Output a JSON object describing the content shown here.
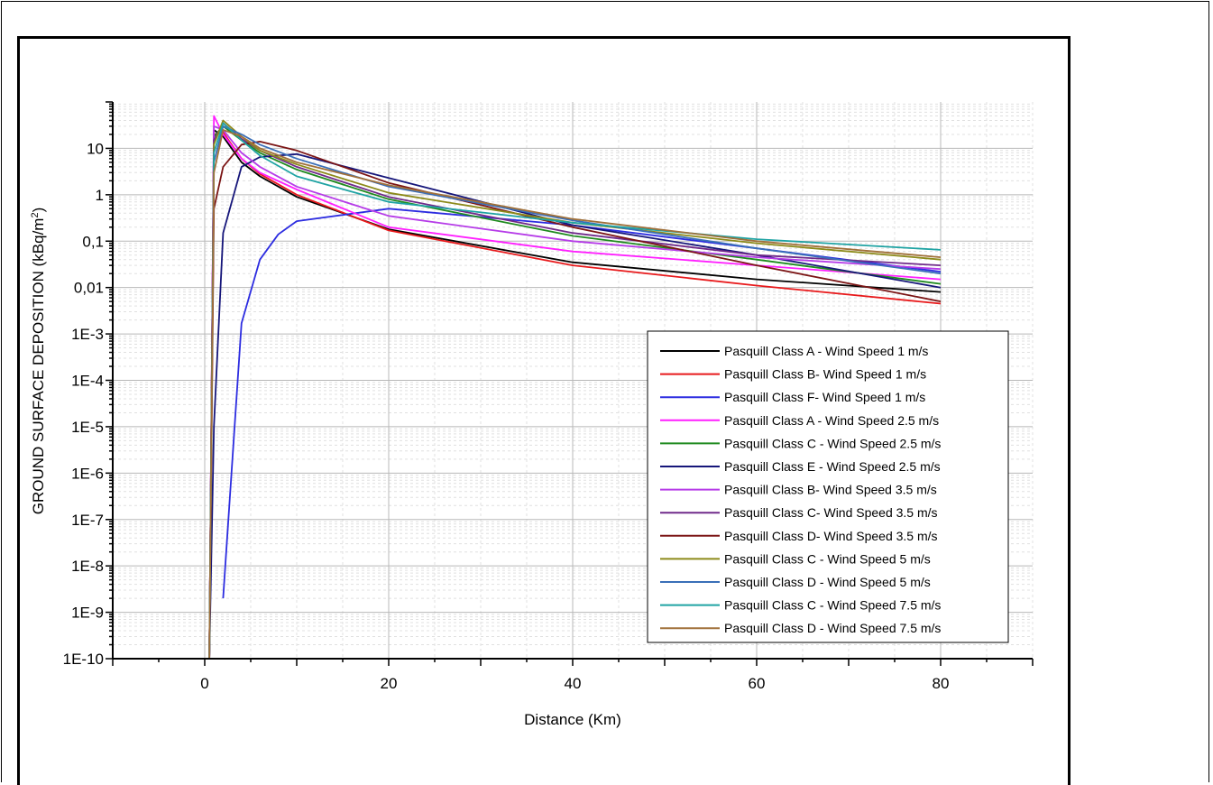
{
  "chart_data": {
    "type": "line",
    "title": "",
    "xlabel": "Distance (Km)",
    "ylabel_main": "GROUND SURFACE DEPOSITION (kBq/m",
    "ylabel_sup": "2",
    "ylabel_close": ")",
    "xlim": [
      -10,
      90
    ],
    "ylim": [
      1e-10,
      100
    ],
    "y_scale": "log",
    "grid": true,
    "legend_position": "bottom-right",
    "x_ticks": [
      0,
      20,
      40,
      60,
      80
    ],
    "x_tick_labels": [
      "0",
      "20",
      "40",
      "60",
      "80"
    ],
    "y_ticks": [
      1e-10,
      1e-09,
      1e-08,
      1e-07,
      1e-06,
      1e-05,
      0.0001,
      0.001,
      0.01,
      0.1,
      1,
      10
    ],
    "y_tick_labels": [
      "1E-10",
      "1E-9",
      "1E-8",
      "1E-7",
      "1E-6",
      "1E-5",
      "1E-4",
      "1E-3",
      "0,01",
      "0,1",
      "1",
      "10"
    ],
    "series": [
      {
        "name": "Pasquill Class A  -  Wind Speed 1 m/s",
        "color": "#000000",
        "x": [
          0.5,
          1,
          2,
          4,
          6,
          10,
          20,
          40,
          60,
          80
        ],
        "y": [
          1e-10,
          25,
          18,
          5,
          2.5,
          0.9,
          0.18,
          0.035,
          0.015,
          0.008
        ]
      },
      {
        "name": "Pasquill Class B-  Wind Speed 1 m/s",
        "color": "#e8191b",
        "x": [
          0.5,
          1,
          2,
          4,
          6,
          10,
          20,
          40,
          60,
          80
        ],
        "y": [
          1e-10,
          20,
          22,
          6,
          2.8,
          1.0,
          0.17,
          0.03,
          0.011,
          0.0045
        ]
      },
      {
        "name": "Pasquill Class F-  Wind Speed 1 m/s",
        "color": "#2c2ce0",
        "x": [
          2,
          4,
          6,
          8,
          10,
          20,
          40,
          60,
          80
        ],
        "y": [
          2e-09,
          0.0017,
          0.04,
          0.14,
          0.27,
          0.5,
          0.22,
          0.07,
          0.022
        ]
      },
      {
        "name": "Pasquill Class A -  Wind Speed 2.5 m/s",
        "color": "#ff1fff",
        "x": [
          0.5,
          1,
          2,
          4,
          6,
          10,
          20,
          40,
          60,
          80
        ],
        "y": [
          1e-10,
          50,
          20,
          6,
          3.0,
          1.3,
          0.2,
          0.06,
          0.03,
          0.015
        ]
      },
      {
        "name": "Pasquill Class C -  Wind Speed 2.5 m/s",
        "color": "#1f8a1f",
        "x": [
          0.5,
          1,
          2,
          4,
          6,
          10,
          20,
          40,
          60,
          80
        ],
        "y": [
          1e-10,
          18,
          30,
          15,
          8,
          3.5,
          0.8,
          0.13,
          0.04,
          0.012
        ]
      },
      {
        "name": "Pasquill Class E -  Wind Speed 2.5 m/s",
        "color": "#16167a",
        "x": [
          0.5,
          1,
          2,
          4,
          6,
          10,
          20,
          40,
          60,
          80
        ],
        "y": [
          1e-10,
          1e-05,
          0.15,
          4,
          6.5,
          7.5,
          2.3,
          0.22,
          0.05,
          0.01
        ]
      },
      {
        "name": "Pasquill Class B-  Wind Speed 3.5 m/s",
        "color": "#b63ce8",
        "x": [
          0.5,
          1,
          2,
          4,
          6,
          10,
          20,
          40,
          60,
          80
        ],
        "y": [
          1e-10,
          30,
          25,
          8,
          4,
          1.5,
          0.35,
          0.1,
          0.045,
          0.025
        ]
      },
      {
        "name": "Pasquill Class C-  Wind Speed 3.5 m/s",
        "color": "#702a8a",
        "x": [
          0.5,
          1,
          2,
          4,
          6,
          10,
          20,
          40,
          60,
          80
        ],
        "y": [
          1e-10,
          15,
          35,
          16,
          9,
          4,
          0.9,
          0.15,
          0.05,
          0.03
        ]
      },
      {
        "name": "Pasquill Class D-  Wind Speed 3.5 m/s",
        "color": "#7b1515",
        "x": [
          0.5,
          1,
          2,
          4,
          6,
          10,
          20,
          40,
          60,
          80
        ],
        "y": [
          1e-10,
          0.5,
          4,
          12,
          14,
          9,
          1.8,
          0.2,
          0.03,
          0.005
        ]
      },
      {
        "name": "Pasquill Class C  -  Wind Speed 5 m/s",
        "color": "#8c8a1a",
        "x": [
          0.5,
          1,
          2,
          4,
          6,
          10,
          20,
          40,
          60,
          80
        ],
        "y": [
          1e-10,
          12,
          40,
          18,
          9,
          4.5,
          1.1,
          0.25,
          0.09,
          0.04
        ]
      },
      {
        "name": "Pasquill Class D -  Wind Speed 5 m/s",
        "color": "#3a6fb8",
        "x": [
          0.5,
          1,
          2,
          4,
          6,
          10,
          20,
          40,
          60,
          80
        ],
        "y": [
          1e-10,
          5,
          30,
          20,
          12,
          6,
          1.5,
          0.28,
          0.07,
          0.02
        ]
      },
      {
        "name": "Pasquill Class C -  Wind Speed 7.5 m/s",
        "color": "#1fa3a3",
        "x": [
          0.5,
          1,
          2,
          4,
          6,
          10,
          20,
          40,
          60,
          80
        ],
        "y": [
          1e-10,
          8,
          35,
          15,
          7,
          2.5,
          0.7,
          0.25,
          0.11,
          0.065
        ]
      },
      {
        "name": "Pasquill Class D -  Wind Speed 7.5 m/s",
        "color": "#a0703a",
        "x": [
          0.5,
          1,
          2,
          4,
          6,
          10,
          20,
          40,
          60,
          80
        ],
        "y": [
          1e-10,
          3,
          25,
          18,
          10,
          5,
          1.6,
          0.3,
          0.1,
          0.045
        ]
      }
    ]
  }
}
